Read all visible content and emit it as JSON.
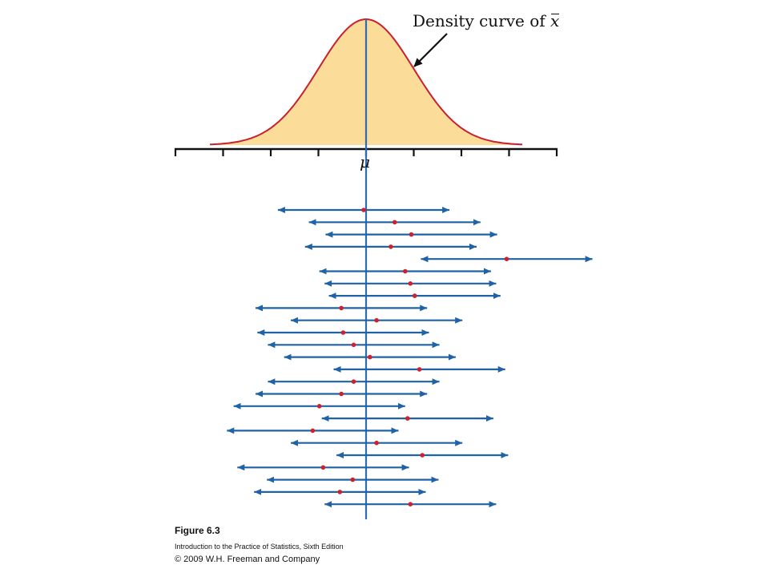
{
  "figure": {
    "density_label_prefix": "Density curve of ",
    "density_label_var": "x",
    "mu_label": "μ",
    "number": "Figure 6.3",
    "book": "Introduction to the Practice of Statistics, Sixth Edition",
    "copyright": "© 2009 W.H. Freeman and Company"
  },
  "colors": {
    "curve_fill": "#fbdc98",
    "curve_line": "#c8202f",
    "mean_line": "#2b6cb5",
    "interval_line": "#1f63a6",
    "point": "#d0202e",
    "axis": "#111111"
  },
  "intervals": [
    {
      "center": -0.05,
      "half_width": 1.8
    },
    {
      "center": 0.6,
      "half_width": 1.8
    },
    {
      "center": 0.95,
      "half_width": 1.8
    },
    {
      "center": 0.52,
      "half_width": 1.8
    },
    {
      "center": 2.95,
      "half_width": 1.8
    },
    {
      "center": 0.82,
      "half_width": 1.8
    },
    {
      "center": 0.93,
      "half_width": 1.8
    },
    {
      "center": 1.02,
      "half_width": 1.8
    },
    {
      "center": -0.52,
      "half_width": 1.8
    },
    {
      "center": 0.22,
      "half_width": 1.8
    },
    {
      "center": -0.48,
      "half_width": 1.8
    },
    {
      "center": -0.26,
      "half_width": 1.8
    },
    {
      "center": 0.08,
      "half_width": 1.8
    },
    {
      "center": 1.12,
      "half_width": 1.8
    },
    {
      "center": -0.26,
      "half_width": 1.8
    },
    {
      "center": -0.52,
      "half_width": 1.8
    },
    {
      "center": -0.98,
      "half_width": 1.8
    },
    {
      "center": 0.87,
      "half_width": 1.8
    },
    {
      "center": -1.12,
      "half_width": 1.8
    },
    {
      "center": 0.22,
      "half_width": 1.8
    },
    {
      "center": 1.18,
      "half_width": 1.8
    },
    {
      "center": -0.9,
      "half_width": 1.8
    },
    {
      "center": -0.28,
      "half_width": 1.8
    },
    {
      "center": -0.55,
      "half_width": 1.8
    },
    {
      "center": 0.93,
      "half_width": 1.8
    }
  ]
}
